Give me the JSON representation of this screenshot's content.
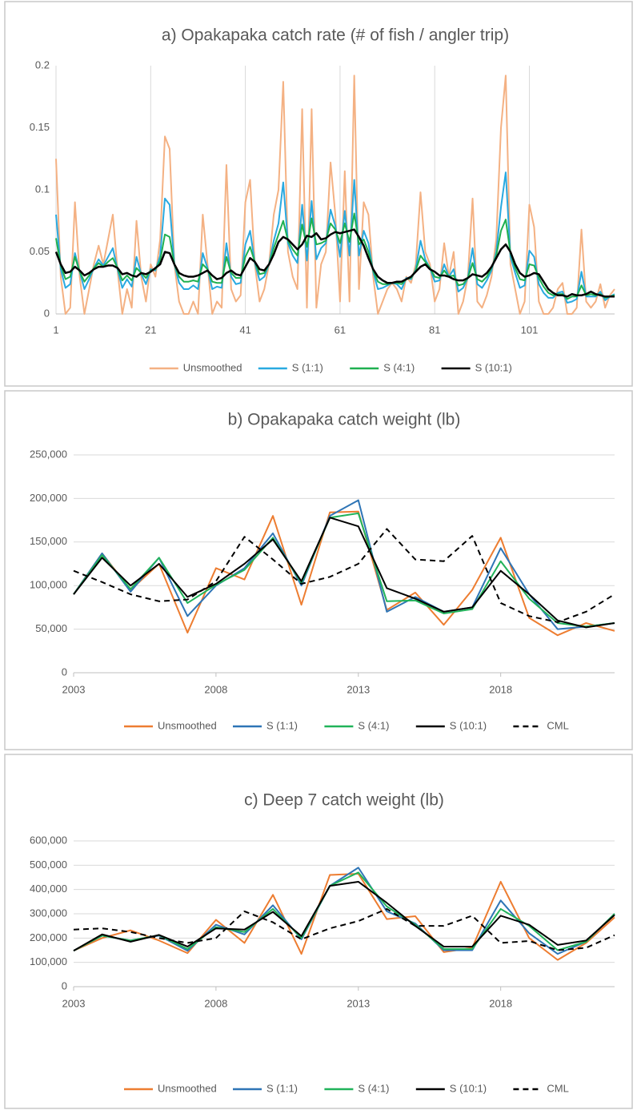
{
  "chart_data": [
    {
      "type": "line",
      "title": "a) Opakapaka catch rate (# of fish / angler trip)",
      "x": [
        1,
        2,
        3,
        4,
        5,
        6,
        7,
        8,
        9,
        10,
        11,
        12,
        13,
        14,
        15,
        16,
        17,
        18,
        19,
        20,
        21,
        22,
        23,
        24,
        25,
        26,
        27,
        28,
        29,
        30,
        31,
        32,
        33,
        34,
        35,
        36,
        37,
        38,
        39,
        40,
        41,
        42,
        43,
        44,
        45,
        46,
        47,
        48,
        49,
        50,
        51,
        52,
        53,
        54,
        55,
        56,
        57,
        58,
        59,
        60,
        61,
        62,
        63,
        64,
        65,
        66,
        67,
        68,
        69,
        70,
        71,
        72,
        73,
        74,
        75,
        76,
        77,
        78,
        79,
        80,
        81,
        82,
        83,
        84,
        85,
        86,
        87,
        88,
        89,
        90,
        91,
        92,
        93,
        94,
        95,
        96,
        97,
        98,
        99,
        100,
        101,
        102,
        103,
        104,
        105,
        106,
        107,
        108,
        109,
        110,
        111,
        112,
        113,
        114,
        115,
        116,
        117,
        118,
        119
      ],
      "xlim": [
        1,
        119
      ],
      "xticks": [
        1,
        21,
        41,
        61,
        81,
        101
      ],
      "ylim": [
        0,
        0.2
      ],
      "yticks": [
        0,
        0.05,
        0.1,
        0.15,
        0.2
      ],
      "grid": "x",
      "series": [
        {
          "name": "Unsmoothed",
          "color": "#f4b183",
          "values": [
            0.125,
            0.03,
            0.0,
            0.005,
            0.09,
            0.03,
            0.0,
            0.02,
            0.04,
            0.055,
            0.04,
            0.06,
            0.08,
            0.035,
            0.0,
            0.02,
            0.005,
            0.075,
            0.03,
            0.01,
            0.04,
            0.03,
            0.06,
            0.143,
            0.133,
            0.04,
            0.01,
            0.0,
            0.0,
            0.01,
            0.0,
            0.08,
            0.04,
            0.0,
            0.01,
            0.005,
            0.12,
            0.02,
            0.01,
            0.015,
            0.09,
            0.108,
            0.04,
            0.01,
            0.02,
            0.04,
            0.08,
            0.1,
            0.187,
            0.05,
            0.03,
            0.02,
            0.165,
            0.005,
            0.165,
            0.005,
            0.04,
            0.05,
            0.122,
            0.08,
            0.01,
            0.115,
            0.01,
            0.192,
            0.02,
            0.09,
            0.08,
            0.03,
            0.0,
            0.01,
            0.02,
            0.025,
            0.02,
            0.01,
            0.03,
            0.025,
            0.04,
            0.098,
            0.05,
            0.04,
            0.01,
            0.02,
            0.057,
            0.03,
            0.05,
            0.0,
            0.01,
            0.03,
            0.093,
            0.01,
            0.005,
            0.015,
            0.03,
            0.06,
            0.15,
            0.192,
            0.04,
            0.02,
            0.0,
            0.01,
            0.088,
            0.07,
            0.01,
            0.0,
            0.0,
            0.005,
            0.02,
            0.025,
            0.0,
            0.0,
            0.005,
            0.068,
            0.01,
            0.005,
            0.01,
            0.024,
            0.005,
            0.015,
            0.02
          ]
        },
        {
          "name": "S (1:1)",
          "color": "#29a9e0",
          "values": [
            0.08,
            0.036,
            0.021,
            0.024,
            0.049,
            0.034,
            0.02,
            0.028,
            0.037,
            0.044,
            0.039,
            0.046,
            0.053,
            0.036,
            0.021,
            0.028,
            0.022,
            0.046,
            0.032,
            0.024,
            0.036,
            0.035,
            0.047,
            0.093,
            0.088,
            0.04,
            0.025,
            0.02,
            0.02,
            0.023,
            0.02,
            0.049,
            0.037,
            0.02,
            0.022,
            0.021,
            0.057,
            0.03,
            0.024,
            0.025,
            0.056,
            0.067,
            0.041,
            0.027,
            0.03,
            0.04,
            0.059,
            0.073,
            0.106,
            0.057,
            0.047,
            0.041,
            0.088,
            0.043,
            0.091,
            0.044,
            0.053,
            0.057,
            0.084,
            0.071,
            0.046,
            0.083,
            0.047,
            0.108,
            0.047,
            0.067,
            0.057,
            0.034,
            0.02,
            0.021,
            0.023,
            0.025,
            0.024,
            0.02,
            0.029,
            0.028,
            0.036,
            0.059,
            0.044,
            0.037,
            0.026,
            0.027,
            0.04,
            0.03,
            0.036,
            0.018,
            0.021,
            0.029,
            0.053,
            0.024,
            0.021,
            0.027,
            0.035,
            0.05,
            0.086,
            0.114,
            0.046,
            0.033,
            0.021,
            0.023,
            0.051,
            0.046,
            0.024,
            0.017,
            0.013,
            0.013,
            0.017,
            0.018,
            0.009,
            0.01,
            0.012,
            0.034,
            0.014,
            0.014,
            0.014,
            0.018,
            0.011,
            0.014,
            0.016
          ]
        },
        {
          "name": "S (4:1)",
          "color": "#1fb050",
          "values": [
            0.061,
            0.039,
            0.028,
            0.03,
            0.046,
            0.034,
            0.026,
            0.031,
            0.037,
            0.041,
            0.038,
            0.042,
            0.045,
            0.037,
            0.027,
            0.031,
            0.027,
            0.037,
            0.033,
            0.029,
            0.035,
            0.036,
            0.043,
            0.064,
            0.062,
            0.04,
            0.03,
            0.026,
            0.026,
            0.027,
            0.026,
            0.04,
            0.036,
            0.026,
            0.025,
            0.025,
            0.046,
            0.033,
            0.029,
            0.029,
            0.046,
            0.054,
            0.042,
            0.032,
            0.033,
            0.04,
            0.053,
            0.064,
            0.075,
            0.059,
            0.052,
            0.047,
            0.072,
            0.054,
            0.077,
            0.056,
            0.057,
            0.059,
            0.073,
            0.068,
            0.057,
            0.073,
            0.058,
            0.081,
            0.056,
            0.06,
            0.05,
            0.035,
            0.026,
            0.024,
            0.024,
            0.025,
            0.025,
            0.024,
            0.028,
            0.029,
            0.035,
            0.047,
            0.042,
            0.037,
            0.03,
            0.029,
            0.035,
            0.03,
            0.031,
            0.023,
            0.024,
            0.029,
            0.041,
            0.028,
            0.026,
            0.03,
            0.037,
            0.047,
            0.067,
            0.076,
            0.049,
            0.037,
            0.028,
            0.027,
            0.04,
            0.039,
            0.029,
            0.022,
            0.017,
            0.015,
            0.016,
            0.016,
            0.012,
            0.014,
            0.014,
            0.023,
            0.015,
            0.016,
            0.015,
            0.016,
            0.013,
            0.014,
            0.015
          ]
        },
        {
          "name": "S (10:1)",
          "color": "#000000",
          "width": 2.5,
          "values": [
            0.05,
            0.04,
            0.033,
            0.034,
            0.038,
            0.035,
            0.031,
            0.033,
            0.036,
            0.038,
            0.038,
            0.039,
            0.039,
            0.037,
            0.032,
            0.033,
            0.031,
            0.03,
            0.033,
            0.032,
            0.034,
            0.037,
            0.04,
            0.05,
            0.049,
            0.04,
            0.033,
            0.031,
            0.03,
            0.03,
            0.031,
            0.033,
            0.035,
            0.031,
            0.028,
            0.029,
            0.033,
            0.035,
            0.032,
            0.031,
            0.038,
            0.045,
            0.042,
            0.036,
            0.035,
            0.04,
            0.048,
            0.058,
            0.062,
            0.06,
            0.056,
            0.052,
            0.056,
            0.063,
            0.062,
            0.065,
            0.06,
            0.061,
            0.064,
            0.066,
            0.065,
            0.066,
            0.067,
            0.068,
            0.062,
            0.055,
            0.045,
            0.036,
            0.03,
            0.027,
            0.025,
            0.025,
            0.026,
            0.026,
            0.028,
            0.03,
            0.034,
            0.038,
            0.04,
            0.036,
            0.034,
            0.031,
            0.031,
            0.03,
            0.028,
            0.027,
            0.027,
            0.029,
            0.032,
            0.031,
            0.03,
            0.033,
            0.038,
            0.045,
            0.052,
            0.056,
            0.05,
            0.04,
            0.033,
            0.03,
            0.031,
            0.033,
            0.032,
            0.026,
            0.02,
            0.017,
            0.015,
            0.015,
            0.014,
            0.016,
            0.015,
            0.015,
            0.016,
            0.018,
            0.016,
            0.015,
            0.014,
            0.014,
            0.014
          ]
        }
      ]
    },
    {
      "type": "line",
      "title": "b) Opakapaka catch weight (lb)",
      "x": [
        2003,
        2004,
        2005,
        2006,
        2007,
        2008,
        2009,
        2010,
        2011,
        2012,
        2013,
        2014,
        2015,
        2016,
        2017,
        2018,
        2019,
        2020,
        2021,
        2022
      ],
      "xlim": [
        2003,
        2022
      ],
      "xticks": [
        2003,
        2008,
        2013,
        2018
      ],
      "ylim": [
        0,
        250000
      ],
      "yticks": [
        0,
        {
          "value": 50000,
          "label": "50,000"
        },
        {
          "value": 100000,
          "label": "100,000"
        },
        {
          "value": 150000,
          "label": "150,000"
        },
        {
          "value": 200000,
          "label": "200,000"
        },
        {
          "value": 250000,
          "label": "250,000"
        }
      ],
      "grid": "y",
      "series": [
        {
          "name": "Unsmoothed",
          "color": "#ed7d31",
          "values": [
            90000,
            137000,
            95000,
            125000,
            46000,
            120000,
            107000,
            180000,
            78000,
            184000,
            185000,
            72000,
            92000,
            55000,
            95000,
            155000,
            63000,
            43000,
            57000,
            48000
          ]
        },
        {
          "name": "S (1:1)",
          "color": "#2e75b6",
          "values": [
            90000,
            137000,
            93000,
            132000,
            65000,
            100000,
            120000,
            160000,
            100000,
            180000,
            198000,
            70000,
            87000,
            70000,
            75000,
            143000,
            90000,
            50000,
            53000,
            57000
          ]
        },
        {
          "name": "S (4:1)",
          "color": "#21b35a",
          "values": [
            90000,
            135000,
            96000,
            132000,
            80000,
            101000,
            118000,
            155000,
            103000,
            178000,
            183000,
            82000,
            83000,
            68000,
            73000,
            128000,
            85000,
            57000,
            53000,
            57000
          ]
        },
        {
          "name": "S (10:1)",
          "color": "#000000",
          "values": [
            90000,
            132000,
            100000,
            125000,
            87000,
            102000,
            125000,
            153000,
            105000,
            178000,
            168000,
            97000,
            85000,
            70000,
            75000,
            117000,
            90000,
            60000,
            52000,
            57000
          ]
        },
        {
          "name": "CML",
          "color": "#000000",
          "style": "dashed",
          "values": [
            117000,
            104000,
            90000,
            82000,
            84000,
            105000,
            156000,
            130000,
            102000,
            110000,
            125000,
            165000,
            130000,
            128000,
            157000,
            80000,
            65000,
            58000,
            70000,
            90000
          ]
        }
      ]
    },
    {
      "type": "line",
      "title": "c) Deep 7 catch weight (lb)",
      "x": [
        2003,
        2004,
        2005,
        2006,
        2007,
        2008,
        2009,
        2010,
        2011,
        2012,
        2013,
        2014,
        2015,
        2016,
        2017,
        2018,
        2019,
        2020,
        2021,
        2022
      ],
      "xlim": [
        2003,
        2022
      ],
      "xticks": [
        2003,
        2008,
        2013,
        2018
      ],
      "ylim": [
        0,
        600000
      ],
      "yticks": [
        0,
        {
          "value": 100000,
          "label": "100,000"
        },
        {
          "value": 200000,
          "label": "200,000"
        },
        {
          "value": 300000,
          "label": "300,000"
        },
        {
          "value": 400000,
          "label": "400,000"
        },
        {
          "value": 500000,
          "label": "500,000"
        },
        {
          "value": 600000,
          "label": "600,000"
        }
      ],
      "grid": "y",
      "series": [
        {
          "name": "Unsmoothed",
          "color": "#ed7d31",
          "values": [
            148000,
            200000,
            232000,
            190000,
            138000,
            275000,
            180000,
            378000,
            135000,
            460000,
            465000,
            278000,
            290000,
            142000,
            160000,
            432000,
            200000,
            110000,
            180000,
            285000
          ]
        },
        {
          "name": "S (1:1)",
          "color": "#2e75b6",
          "values": [
            148000,
            210000,
            190000,
            210000,
            148000,
            255000,
            215000,
            335000,
            195000,
            415000,
            490000,
            310000,
            260000,
            150000,
            150000,
            355000,
            220000,
            135000,
            185000,
            300000
          ]
        },
        {
          "name": "S (4:1)",
          "color": "#21b35a",
          "values": [
            148000,
            210000,
            190000,
            212000,
            155000,
            245000,
            225000,
            320000,
            200000,
            415000,
            470000,
            330000,
            255000,
            155000,
            155000,
            320000,
            250000,
            150000,
            185000,
            300000
          ]
        },
        {
          "name": "S (10:1)",
          "color": "#000000",
          "values": [
            148000,
            215000,
            185000,
            213000,
            165000,
            240000,
            235000,
            308000,
            208000,
            415000,
            432000,
            345000,
            250000,
            165000,
            165000,
            292000,
            255000,
            172000,
            190000,
            295000
          ]
        },
        {
          "name": "CML",
          "color": "#000000",
          "style": "dashed",
          "values": [
            235000,
            240000,
            225000,
            200000,
            180000,
            200000,
            310000,
            265000,
            195000,
            240000,
            270000,
            320000,
            250000,
            250000,
            292000,
            180000,
            188000,
            150000,
            160000,
            212000
          ]
        }
      ]
    }
  ]
}
